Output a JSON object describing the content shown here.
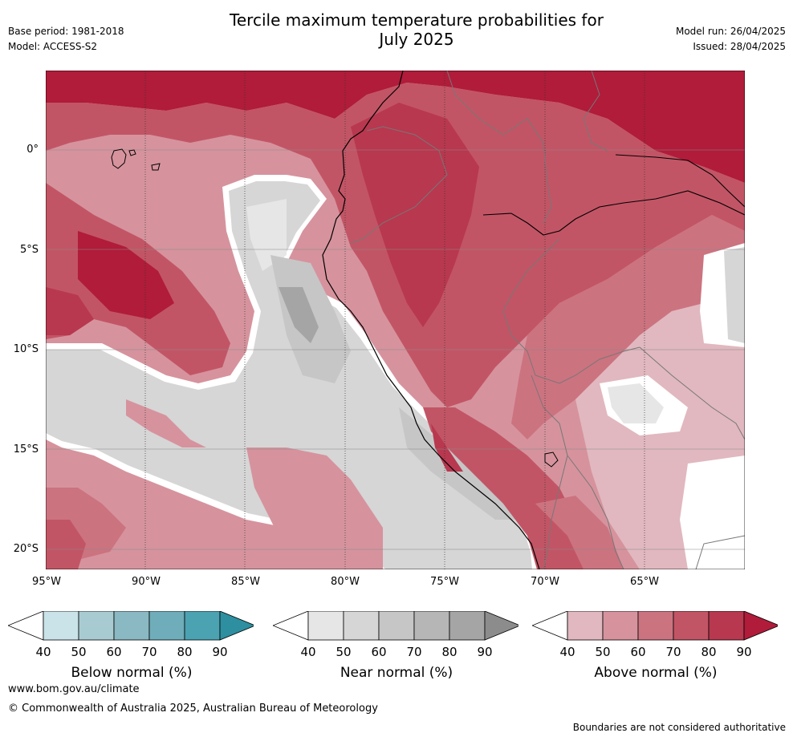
{
  "header": {
    "title": "Tercile maximum temperature probabilities for",
    "subtitle": "July 2025",
    "base_period": "Base period: 1981-2018",
    "model": "Model: ACCESS-S2",
    "model_run": "Model run: 26/04/2025",
    "issued": "Issued: 28/04/2025"
  },
  "map": {
    "lat_labels": [
      "0°",
      "5°S",
      "10°S",
      "15°S",
      "20°S"
    ],
    "lon_labels": [
      "95°W",
      "90°W",
      "85°W",
      "80°W",
      "75°W",
      "70°W",
      "65°W"
    ]
  },
  "colorbars": [
    {
      "title": "Below normal (%)",
      "ticks": [
        "40",
        "50",
        "60",
        "70",
        "80",
        "90"
      ],
      "colors": [
        "#ffffff",
        "#c9e3e8",
        "#a8cbd1",
        "#8ab8c3",
        "#6eadb9",
        "#4ba2b1",
        "#2d8f9f"
      ]
    },
    {
      "title": "Near normal (%)",
      "ticks": [
        "40",
        "50",
        "60",
        "70",
        "80",
        "90"
      ],
      "colors": [
        "#ffffff",
        "#e6e6e6",
        "#d6d6d6",
        "#c6c6c6",
        "#b6b6b6",
        "#a5a5a5",
        "#8c8c8c"
      ]
    },
    {
      "title": "Above normal (%)",
      "ticks": [
        "40",
        "50",
        "60",
        "70",
        "80",
        "90"
      ],
      "colors": [
        "#ffffff",
        "#e1b8bf",
        "#d6939d",
        "#cc7380",
        "#c25565",
        "#b8384f",
        "#b01c3a"
      ]
    }
  ],
  "footer": {
    "url": "www.bom.gov.au/climate",
    "copyright": "© Commonwealth of Australia 2025, Australian Bureau of Meteorology",
    "disclaimer": "Boundaries are not considered authoritative"
  }
}
